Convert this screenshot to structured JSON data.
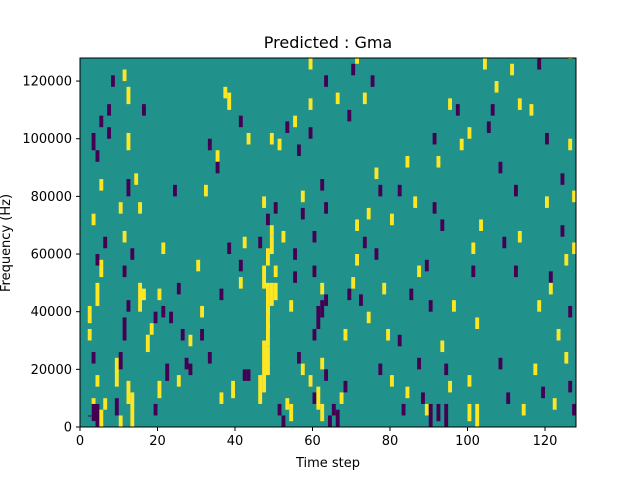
{
  "chart_data": {
    "type": "heatmap",
    "title": "Predicted : Gma",
    "xlabel": "Time step",
    "ylabel": "Frequency (Hz)",
    "xlim": [
      0,
      128
    ],
    "ylim": [
      0,
      128000
    ],
    "x_ticks": [
      0,
      20,
      40,
      60,
      80,
      100,
      120
    ],
    "x_tick_labels": [
      "0",
      "20",
      "40",
      "60",
      "80",
      "100",
      "120"
    ],
    "y_ticks": [
      0,
      20000,
      40000,
      60000,
      80000,
      100000,
      120000
    ],
    "y_tick_labels": [
      "0",
      "20000",
      "40000",
      "60000",
      "80000",
      "100000",
      "120000"
    ],
    "colormap": [
      "#440154",
      "#21918c",
      "#fde725"
    ],
    "background_value": 1,
    "grid": false,
    "cell_height_hz": 4000,
    "cells": [
      [
        2,
        0,
        4000,
        0
      ],
      [
        3,
        4,
        2000,
        2
      ],
      [
        3,
        3,
        2000,
        0
      ],
      [
        4,
        4,
        0,
        0
      ],
      [
        5,
        3,
        0,
        2
      ],
      [
        6,
        2,
        6000,
        2
      ],
      [
        4,
        2,
        14000,
        2
      ],
      [
        3,
        2,
        22000,
        0
      ],
      [
        2,
        2,
        30000,
        2
      ],
      [
        2,
        3,
        36000,
        2
      ],
      [
        4,
        4,
        42000,
        2
      ],
      [
        5,
        3,
        52000,
        2
      ],
      [
        4,
        2,
        56000,
        0
      ],
      [
        6,
        2,
        62000,
        0
      ],
      [
        3,
        2,
        70000,
        2
      ],
      [
        5,
        2,
        82000,
        2
      ],
      [
        4,
        2,
        92000,
        0
      ],
      [
        3,
        3,
        96000,
        0
      ],
      [
        5,
        2,
        104000,
        0
      ],
      [
        7,
        2,
        100000,
        0
      ],
      [
        7,
        2,
        108000,
        0
      ],
      [
        8,
        2,
        118000,
        0
      ],
      [
        9,
        3,
        4000,
        0
      ],
      [
        9,
        5,
        14000,
        2
      ],
      [
        10,
        3,
        20000,
        0
      ],
      [
        11,
        4,
        30000,
        0
      ],
      [
        12,
        2,
        40000,
        0
      ],
      [
        11,
        2,
        52000,
        0
      ],
      [
        11,
        2,
        64000,
        2
      ],
      [
        13,
        2,
        58000,
        0
      ],
      [
        10,
        2,
        74000,
        2
      ],
      [
        12,
        3,
        80000,
        0
      ],
      [
        14,
        2,
        84000,
        2
      ],
      [
        12,
        3,
        96000,
        2
      ],
      [
        16,
        2,
        108000,
        0
      ],
      [
        11,
        2,
        120000,
        2
      ],
      [
        12,
        3,
        112000,
        2
      ],
      [
        15,
        2,
        74000,
        2
      ],
      [
        12,
        4,
        8000,
        2
      ],
      [
        10,
        2,
        0,
        2
      ],
      [
        13,
        6,
        0,
        2
      ],
      [
        19,
        2,
        4000,
        0
      ],
      [
        16,
        2,
        44000,
        2
      ],
      [
        15,
        5,
        40000,
        2
      ],
      [
        17,
        3,
        26000,
        2
      ],
      [
        18,
        2,
        32000,
        2
      ],
      [
        19,
        2,
        36000,
        0
      ],
      [
        20,
        3,
        10000,
        2
      ],
      [
        22,
        3,
        16000,
        0
      ],
      [
        21,
        2,
        38000,
        0
      ],
      [
        20,
        2,
        44000,
        2
      ],
      [
        21,
        2,
        60000,
        2
      ],
      [
        24,
        2,
        80000,
        0
      ],
      [
        25,
        2,
        14000,
        2
      ],
      [
        23,
        2,
        36000,
        0
      ],
      [
        25,
        2,
        46000,
        0
      ],
      [
        26,
        2,
        30000,
        0
      ],
      [
        27,
        2,
        20000,
        0
      ],
      [
        28,
        2,
        28000,
        2
      ],
      [
        28,
        2,
        18000,
        0
      ],
      [
        30,
        2,
        54000,
        2
      ],
      [
        31,
        2,
        38000,
        2
      ],
      [
        33,
        2,
        22000,
        0
      ],
      [
        31,
        2,
        30000,
        0
      ],
      [
        32,
        2,
        80000,
        2
      ],
      [
        33,
        2,
        96000,
        0
      ],
      [
        35,
        2,
        92000,
        2
      ],
      [
        35,
        2,
        88000,
        0
      ],
      [
        36,
        2,
        44000,
        0
      ],
      [
        36,
        2,
        8000,
        2
      ],
      [
        37,
        2,
        114000,
        2
      ],
      [
        38,
        3,
        110000,
        2
      ],
      [
        39,
        3,
        10000,
        2
      ],
      [
        38,
        2,
        60000,
        0
      ],
      [
        41,
        2,
        48000,
        2
      ],
      [
        41,
        2,
        54000,
        0
      ],
      [
        42,
        2,
        62000,
        2
      ],
      [
        42,
        2,
        16000,
        0
      ],
      [
        43,
        2,
        16000,
        0
      ],
      [
        43,
        2,
        98000,
        2
      ],
      [
        41,
        2,
        104000,
        0
      ],
      [
        47,
        4,
        48000,
        2
      ],
      [
        48,
        3,
        56000,
        2
      ],
      [
        49,
        3,
        60000,
        2
      ],
      [
        46,
        5,
        8000,
        2
      ],
      [
        47,
        5,
        12000,
        2
      ],
      [
        48,
        5,
        18000,
        2
      ],
      [
        47,
        4,
        22000,
        2
      ],
      [
        48,
        4,
        28000,
        2
      ],
      [
        48,
        5,
        34000,
        2
      ],
      [
        48,
        6,
        38000,
        2
      ],
      [
        49,
        4,
        42000,
        2
      ],
      [
        50,
        3,
        44000,
        2
      ],
      [
        50,
        2,
        52000,
        2
      ],
      [
        46,
        2,
        62000,
        0
      ],
      [
        48,
        2,
        70000,
        0
      ],
      [
        50,
        2,
        74000,
        0
      ],
      [
        47,
        2,
        76000,
        2
      ],
      [
        49,
        2,
        66000,
        2
      ],
      [
        52,
        2,
        64000,
        2
      ],
      [
        53,
        2,
        6000,
        2
      ],
      [
        51,
        2,
        4000,
        0
      ],
      [
        52,
        2,
        0,
        0
      ],
      [
        54,
        3,
        2000,
        2
      ],
      [
        54,
        2,
        40000,
        2
      ],
      [
        56,
        2,
        22000,
        0
      ],
      [
        55,
        2,
        58000,
        0
      ],
      [
        55,
        2,
        50000,
        0
      ],
      [
        57,
        2,
        72000,
        0
      ],
      [
        57,
        2,
        18000,
        2
      ],
      [
        59,
        2,
        14000,
        2
      ],
      [
        56,
        2,
        94000,
        0
      ],
      [
        57,
        2,
        78000,
        2
      ],
      [
        49,
        2,
        98000,
        2
      ],
      [
        51,
        2,
        96000,
        2
      ],
      [
        53,
        2,
        102000,
        0
      ],
      [
        55,
        2,
        104000,
        2
      ],
      [
        59,
        2,
        100000,
        0
      ],
      [
        59,
        2,
        110000,
        2
      ],
      [
        59,
        2,
        124000,
        2
      ],
      [
        60,
        2,
        8000,
        0
      ],
      [
        61,
        4,
        6000,
        2
      ],
      [
        62,
        3,
        2000,
        2
      ],
      [
        60,
        2,
        30000,
        0
      ],
      [
        61,
        4,
        34000,
        0
      ],
      [
        62,
        3,
        38000,
        0
      ],
      [
        63,
        2,
        42000,
        0
      ],
      [
        62,
        2,
        46000,
        2
      ],
      [
        60,
        2,
        52000,
        0
      ],
      [
        62,
        2,
        20000,
        2
      ],
      [
        63,
        2,
        16000,
        0
      ],
      [
        60,
        2,
        64000,
        0
      ],
      [
        63,
        2,
        74000,
        0
      ],
      [
        62,
        2,
        82000,
        0
      ],
      [
        63,
        2,
        118000,
        0
      ],
      [
        66,
        2,
        112000,
        2
      ],
      [
        64,
        2,
        0,
        0
      ],
      [
        65,
        2,
        4000,
        0
      ],
      [
        66,
        3,
        0,
        0
      ],
      [
        67,
        2,
        8000,
        2
      ],
      [
        68,
        2,
        12000,
        0
      ],
      [
        68,
        2,
        30000,
        2
      ],
      [
        69,
        2,
        44000,
        0
      ],
      [
        70,
        2,
        48000,
        2
      ],
      [
        71,
        2,
        56000,
        2
      ],
      [
        72,
        2,
        42000,
        0
      ],
      [
        73,
        2,
        62000,
        0
      ],
      [
        74,
        2,
        36000,
        2
      ],
      [
        71,
        2,
        68000,
        2
      ],
      [
        74,
        2,
        72000,
        2
      ],
      [
        69,
        2,
        106000,
        0
      ],
      [
        70,
        2,
        122000,
        0
      ],
      [
        71,
        2,
        126000,
        2
      ],
      [
        73,
        2,
        112000,
        2
      ],
      [
        75,
        2,
        118000,
        0
      ],
      [
        76,
        2,
        86000,
        2
      ],
      [
        77,
        2,
        80000,
        0
      ],
      [
        78,
        2,
        46000,
        2
      ],
      [
        76,
        2,
        58000,
        0
      ],
      [
        77,
        2,
        18000,
        0
      ],
      [
        79,
        2,
        30000,
        2
      ],
      [
        80,
        2,
        14000,
        2
      ],
      [
        82,
        2,
        28000,
        0
      ],
      [
        80,
        2,
        70000,
        2
      ],
      [
        82,
        2,
        80000,
        0
      ],
      [
        83,
        2,
        4000,
        0
      ],
      [
        84,
        2,
        10000,
        2
      ],
      [
        84,
        2,
        90000,
        2
      ],
      [
        85,
        2,
        44000,
        0
      ],
      [
        86,
        2,
        76000,
        2
      ],
      [
        87,
        2,
        20000,
        0
      ],
      [
        88,
        2,
        8000,
        0
      ],
      [
        89,
        2,
        4000,
        2
      ],
      [
        87,
        2,
        52000,
        2
      ],
      [
        90,
        2,
        40000,
        0
      ],
      [
        89,
        2,
        54000,
        0
      ],
      [
        91,
        2,
        98000,
        0
      ],
      [
        92,
        2,
        90000,
        2
      ],
      [
        93,
        2,
        68000,
        0
      ],
      [
        93,
        2,
        26000,
        2
      ],
      [
        91,
        2,
        74000,
        0
      ],
      [
        94,
        2,
        18000,
        0
      ],
      [
        95,
        2,
        110000,
        2
      ],
      [
        96,
        2,
        40000,
        2
      ],
      [
        95,
        2,
        12000,
        2
      ],
      [
        97,
        2,
        108000,
        0
      ],
      [
        98,
        2,
        96000,
        2
      ],
      [
        90,
        4,
        0,
        0
      ],
      [
        94,
        4,
        0,
        0
      ],
      [
        92,
        3,
        2000,
        0
      ],
      [
        100,
        3,
        2000,
        2
      ],
      [
        102,
        4,
        0,
        2
      ],
      [
        100,
        2,
        14000,
        2
      ],
      [
        102,
        2,
        34000,
        2
      ],
      [
        101,
        2,
        52000,
        0
      ],
      [
        100,
        2,
        100000,
        2
      ],
      [
        101,
        2,
        60000,
        2
      ],
      [
        103,
        2,
        68000,
        2
      ],
      [
        104,
        2,
        124000,
        2
      ],
      [
        105,
        2,
        102000,
        0
      ],
      [
        106,
        2,
        108000,
        0
      ],
      [
        107,
        2,
        116000,
        2
      ],
      [
        108,
        2,
        88000,
        0
      ],
      [
        108,
        2,
        20000,
        0
      ],
      [
        109,
        2,
        62000,
        0
      ],
      [
        110,
        2,
        8000,
        0
      ],
      [
        111,
        2,
        122000,
        2
      ],
      [
        112,
        2,
        80000,
        0
      ],
      [
        113,
        2,
        64000,
        2
      ],
      [
        112,
        2,
        52000,
        0
      ],
      [
        113,
        2,
        110000,
        2
      ],
      [
        114,
        2,
        4000,
        2
      ],
      [
        116,
        2,
        108000,
        2
      ],
      [
        117,
        2,
        18000,
        2
      ],
      [
        118,
        2,
        124000,
        0
      ],
      [
        118,
        2,
        40000,
        2
      ],
      [
        119,
        2,
        10000,
        0
      ],
      [
        120,
        2,
        98000,
        0
      ],
      [
        120,
        2,
        76000,
        2
      ],
      [
        121,
        2,
        50000,
        0
      ],
      [
        122,
        2,
        6000,
        2
      ],
      [
        121,
        2,
        46000,
        2
      ],
      [
        123,
        2,
        30000,
        2
      ],
      [
        124,
        2,
        66000,
        0
      ],
      [
        125,
        2,
        56000,
        2
      ],
      [
        126,
        2,
        128000,
        2
      ],
      [
        126,
        2,
        96000,
        2
      ],
      [
        127,
        2,
        60000,
        2
      ],
      [
        126,
        2,
        12000,
        0
      ],
      [
        127,
        2,
        78000,
        2
      ],
      [
        126,
        2,
        38000,
        0
      ],
      [
        125,
        2,
        22000,
        2
      ],
      [
        127,
        2,
        4000,
        0
      ],
      [
        124,
        2,
        84000,
        0
      ]
    ]
  }
}
